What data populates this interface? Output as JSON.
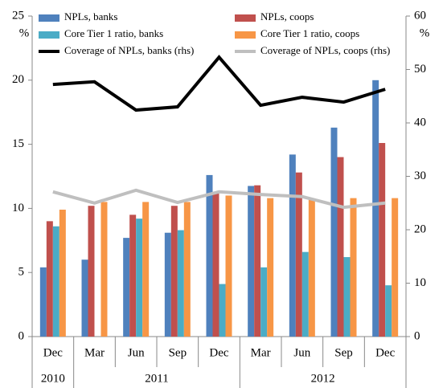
{
  "chart_data": {
    "type": "bar",
    "categories": [
      "Dec",
      "Mar",
      "Jun",
      "Sep",
      "Dec",
      "Mar",
      "Jun",
      "Sep",
      "Dec"
    ],
    "year_groups": [
      {
        "label": "2010",
        "count": 1
      },
      {
        "label": "2011",
        "count": 4
      },
      {
        "label": "2012",
        "count": 4
      }
    ],
    "y_unit": "%",
    "y2_unit": "%",
    "ylim": [
      0,
      25
    ],
    "yticks": [
      0,
      5,
      10,
      15,
      20,
      25
    ],
    "y2lim": [
      0,
      60
    ],
    "y2ticks": [
      0,
      10,
      20,
      30,
      40,
      50,
      60
    ],
    "series": [
      {
        "name": "NPLs, banks",
        "color": "#4f81bd",
        "type": "bar",
        "values": [
          5.4,
          6.0,
          7.7,
          8.1,
          12.6,
          11.75,
          14.2,
          16.3,
          20.0
        ]
      },
      {
        "name": "NPLs, coops",
        "color": "#c0504d",
        "type": "bar",
        "values": [
          9.0,
          10.2,
          9.5,
          10.2,
          11.2,
          11.8,
          12.8,
          14.0,
          15.1
        ]
      },
      {
        "name": "Core Tier 1 ratio, banks",
        "color": "#4bacc6",
        "type": "bar",
        "values": [
          8.6,
          null,
          9.2,
          8.3,
          4.1,
          5.4,
          6.6,
          6.2,
          4.0
        ]
      },
      {
        "name": "Core Tier 1 ratio, coops",
        "color": "#f79646",
        "type": "bar",
        "values": [
          9.9,
          10.5,
          10.5,
          10.5,
          11.0,
          10.8,
          10.7,
          10.8,
          10.8
        ]
      },
      {
        "name": "Coverage of NPLs, banks (rhs)",
        "color": "#000000",
        "type": "line",
        "axis": "y2",
        "values": [
          47.2,
          47.7,
          42.4,
          43.0,
          52.3,
          43.3,
          44.8,
          43.9,
          46.3
        ]
      },
      {
        "name": "Coverage of NPLs, coops (rhs)",
        "color": "#bfbfbf",
        "type": "line",
        "axis": "y2",
        "values": [
          27.1,
          25.0,
          27.4,
          25.1,
          27.1,
          26.6,
          26.2,
          24.2,
          25.0
        ]
      }
    ]
  }
}
